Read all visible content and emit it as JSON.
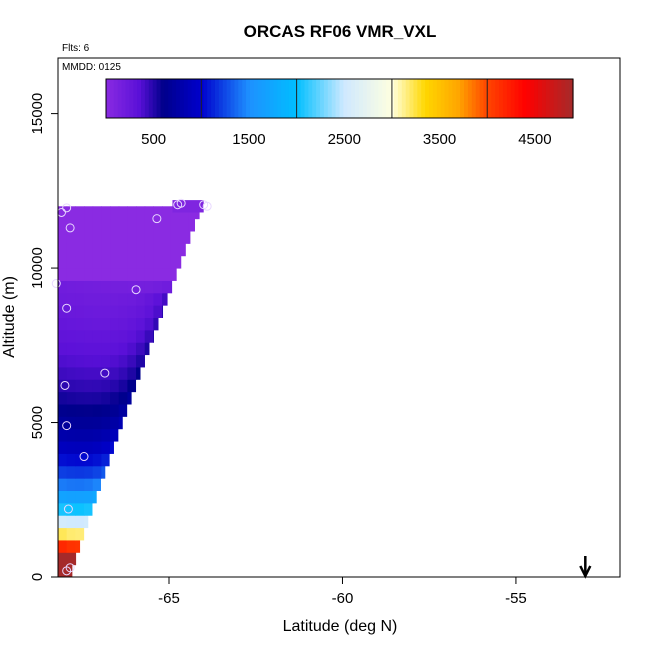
{
  "chart_data": {
    "type": "heatmap",
    "title": "ORCAS RF06 VMR_VXL",
    "flights_note": "Flts: 6",
    "date_note": "MMDD: 0125",
    "xlabel": "Latitude (deg N)",
    "ylabel": "Altitude (m)",
    "xlim": [
      -68.2,
      -52.0
    ],
    "ylim": [
      0,
      16800
    ],
    "x_ticks": [
      -65,
      -60,
      -55
    ],
    "x_tick_labels": [
      "-65",
      "-60",
      "-55"
    ],
    "y_ticks": [
      0,
      5000,
      10000,
      15000
    ],
    "y_tick_labels": [
      "0",
      "5000",
      "10000",
      "15000"
    ],
    "colorbar": {
      "min": 0,
      "max": 4900,
      "ticks": [
        500,
        1500,
        2500,
        3500,
        4500
      ],
      "tick_labels": [
        "500",
        "1500",
        "2500",
        "3500",
        "4500"
      ],
      "divisions": [
        1000,
        2000,
        3000,
        4000
      ],
      "stops": [
        {
          "v": 0,
          "c": "#8a2be2"
        },
        {
          "v": 350,
          "c": "#5a10d8"
        },
        {
          "v": 600,
          "c": "#00008b"
        },
        {
          "v": 1000,
          "c": "#0000cd"
        },
        {
          "v": 1500,
          "c": "#1e90ff"
        },
        {
          "v": 2000,
          "c": "#00bfff"
        },
        {
          "v": 2500,
          "c": "#cfe9ff"
        },
        {
          "v": 3000,
          "c": "#ffffe0"
        },
        {
          "v": 3350,
          "c": "#ffd700"
        },
        {
          "v": 3700,
          "c": "#ffa500"
        },
        {
          "v": 4000,
          "c": "#ff4500"
        },
        {
          "v": 4400,
          "c": "#ff0000"
        },
        {
          "v": 4900,
          "c": "#a52a2a"
        }
      ]
    },
    "field": {
      "lat_min": -68.2,
      "lat_max": -64.0,
      "lat_step": 0.25,
      "alt_step": 400,
      "alt_top_base": 12000,
      "alt_top_slope_per_deg": 0,
      "edge_lat_at_top": -64.0,
      "edge_lat_at_bottom": -67.8,
      "top_alt": 12000
    },
    "sample_points": [
      {
        "lat": -68.1,
        "alt": 11800
      },
      {
        "lat": -67.95,
        "alt": 11950
      },
      {
        "lat": -67.85,
        "alt": 11300
      },
      {
        "lat": -68.25,
        "alt": 9500
      },
      {
        "lat": -67.95,
        "alt": 8700
      },
      {
        "lat": -68.0,
        "alt": 6200
      },
      {
        "lat": -67.95,
        "alt": 4900
      },
      {
        "lat": -67.45,
        "alt": 3900
      },
      {
        "lat": -67.9,
        "alt": 2200
      },
      {
        "lat": -67.85,
        "alt": 300
      },
      {
        "lat": -67.95,
        "alt": 200
      },
      {
        "lat": -66.85,
        "alt": 6600
      },
      {
        "lat": -65.95,
        "alt": 9300
      },
      {
        "lat": -65.35,
        "alt": 11600
      },
      {
        "lat": -64.75,
        "alt": 12050
      },
      {
        "lat": -64.65,
        "alt": 12100
      },
      {
        "lat": -64.0,
        "alt": 12050
      },
      {
        "lat": -63.9,
        "alt": 12000
      }
    ],
    "arrow_lat": -53.0
  }
}
